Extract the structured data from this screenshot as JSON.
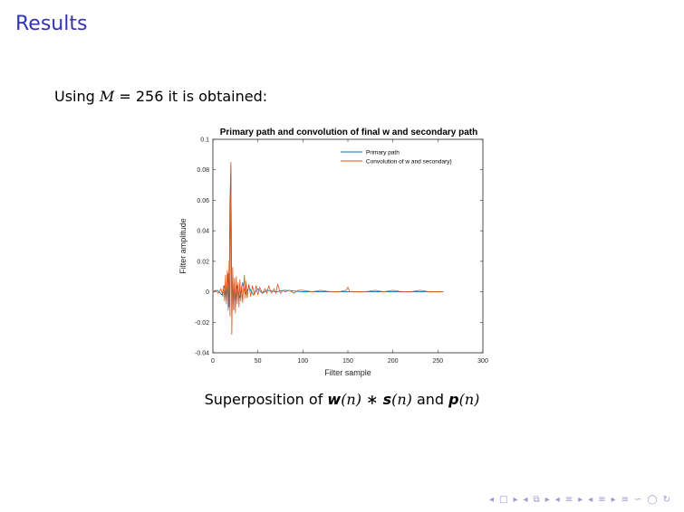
{
  "slide": {
    "title": "Results",
    "intro_prefix": "Using ",
    "intro_var": "M",
    "intro_suffix": " = 256 it is obtained:",
    "caption_prefix": "Superposition of ",
    "caption_w": "w",
    "caption_wn": "(n)",
    "caption_op": " ∗ ",
    "caption_s": "s",
    "caption_sn": "(n)",
    "caption_and": " and ",
    "caption_p": "p",
    "caption_pn": "(n)"
  },
  "navigation": {
    "icons": [
      "◂",
      "□",
      "▸",
      "◂",
      "⧉",
      "▸",
      "◂",
      "≡",
      "▸",
      "◂",
      "≡",
      "▸",
      "≡",
      "∽",
      "◯",
      "↻"
    ]
  },
  "chart_data": {
    "type": "line",
    "title": "Primary path and convolution of final w and secondary path",
    "xlabel": "Filter sample",
    "ylabel": "Filter amplitude",
    "xlim": [
      0,
      300
    ],
    "ylim": [
      -0.04,
      0.1
    ],
    "xticks": [
      0,
      50,
      100,
      150,
      200,
      250,
      300
    ],
    "yticks": [
      -0.04,
      -0.02,
      0,
      0.02,
      0.04,
      0.06,
      0.08,
      0.1
    ],
    "ytick_labels": [
      "-0.04",
      "-0.02",
      "0",
      "0.02",
      "0.04",
      "0.06",
      "0.08",
      "0.1"
    ],
    "legend_position": "top-right",
    "series": [
      {
        "name": "Primary path",
        "color": "#0072bd",
        "x": [
          0,
          5,
          10,
          13,
          15,
          17,
          18,
          19,
          20,
          21,
          22,
          23,
          24,
          25,
          27,
          30,
          33,
          36,
          40,
          45,
          50,
          55,
          60,
          70,
          80,
          100,
          150,
          200,
          256
        ],
        "y": [
          0,
          0.001,
          -0.002,
          0.004,
          -0.006,
          0.012,
          -0.01,
          0.06,
          0.083,
          -0.015,
          0.01,
          -0.012,
          0.006,
          -0.008,
          0.004,
          -0.004,
          0.006,
          -0.002,
          0.003,
          -0.002,
          0.002,
          -0.001,
          0.001,
          0.0,
          0.001,
          0.0,
          0.0,
          0.0,
          0.0
        ]
      },
      {
        "name": "Convolution of w and secondary)",
        "color": "#d95319",
        "x": [
          0,
          3,
          6,
          9,
          11,
          12,
          13,
          14,
          15,
          16,
          17,
          18,
          19,
          20,
          21,
          22,
          23,
          24,
          25,
          26,
          27,
          28,
          29,
          30,
          31,
          32,
          33,
          35,
          36,
          37,
          38,
          40,
          42,
          44,
          46,
          48,
          50,
          52,
          55,
          58,
          60,
          62,
          65,
          68,
          70,
          72,
          75,
          78,
          80,
          85,
          90,
          95,
          100,
          110,
          120,
          130,
          140,
          148,
          150,
          152,
          160,
          170,
          180,
          190,
          200,
          210,
          220,
          230,
          240,
          250,
          256
        ],
        "y": [
          0,
          0.001,
          -0.001,
          0.002,
          -0.003,
          0.004,
          -0.006,
          0.011,
          -0.008,
          0.014,
          -0.012,
          0.02,
          -0.016,
          0.085,
          -0.028,
          0.016,
          -0.012,
          0.009,
          -0.014,
          0.01,
          -0.008,
          0.006,
          -0.01,
          0.008,
          -0.006,
          0.004,
          -0.007,
          0.011,
          -0.004,
          0.007,
          -0.004,
          0.005,
          -0.003,
          0.004,
          -0.002,
          0.004,
          -0.002,
          0.003,
          -0.001,
          0.002,
          -0.001,
          0.004,
          -0.001,
          0.002,
          -0.001,
          0.005,
          -0.001,
          0.001,
          0.0,
          0.001,
          -0.001,
          0.001,
          0.001,
          0.0,
          0.001,
          0.0,
          0.0,
          0.001,
          0.003,
          0.0,
          0.0,
          0.0,
          0.001,
          0.0,
          0.001,
          0.0,
          0.0,
          0.001,
          0.0,
          0.0,
          0.0
        ]
      }
    ]
  }
}
